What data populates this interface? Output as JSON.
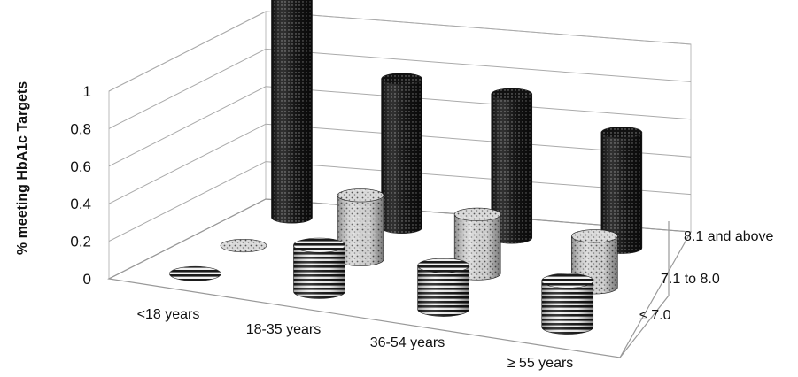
{
  "chart_data": {
    "type": "bar",
    "variant": "3d-cylinder",
    "title": "",
    "ylabel": "% meeting HbA1c Targets",
    "xlabel": "",
    "ylim": [
      0,
      1
    ],
    "yticks": [
      "0",
      "0.2",
      "0.4",
      "0.6",
      "0.8",
      "1"
    ],
    "grid": true,
    "legend": "none",
    "categories": [
      "<18 years",
      "18-35 years",
      "36-54 years",
      "≥ 55 years"
    ],
    "series": [
      {
        "name": "≤ 7.0",
        "pattern": "horizontal-stripes",
        "values": [
          0.0,
          0.18,
          0.17,
          0.18
        ]
      },
      {
        "name": "7.1 to 8.0",
        "pattern": "speckled",
        "values": [
          0.0,
          0.25,
          0.23,
          0.2
        ]
      },
      {
        "name": "8.1 and above",
        "pattern": "dense-black-dots",
        "values": [
          1.0,
          0.58,
          0.56,
          0.45
        ]
      }
    ]
  }
}
